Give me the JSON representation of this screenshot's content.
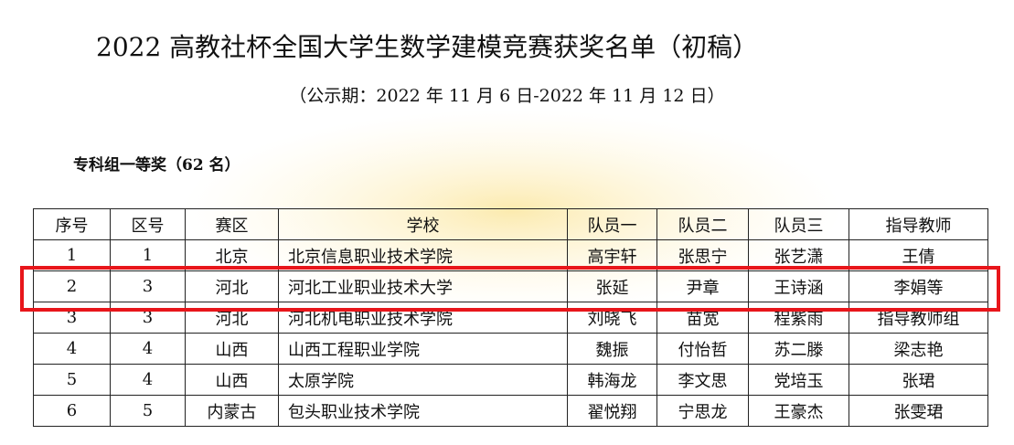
{
  "header": {
    "title": "2022 高教社杯全国大学生数学建模竞赛获奖名单（初稿）",
    "subtitle": "（公示期：2022 年 11 月 6 日-2022 年 11 月 12 日）"
  },
  "section": "专科组一等奖（62 名）",
  "table": {
    "columns": [
      "序号",
      "区号",
      "赛区",
      "学校",
      "队员一",
      "队员二",
      "队员三",
      "指导教师"
    ],
    "rows": [
      [
        "1",
        "1",
        "北京",
        "北京信息职业技术学院",
        "高宇轩",
        "张思宁",
        "张艺潇",
        "王倩"
      ],
      [
        "2",
        "3",
        "河北",
        "河北工业职业技术大学",
        "张延",
        "尹章",
        "王诗涵",
        "李娟等"
      ],
      [
        "3",
        "3",
        "河北",
        "河北机电职业技术学院",
        "刘晓飞",
        "苗宽",
        "程紫雨",
        "指导教师组"
      ],
      [
        "4",
        "4",
        "山西",
        "山西工程职业学院",
        "魏振",
        "付怡哲",
        "苏二滕",
        "梁志艳"
      ],
      [
        "5",
        "4",
        "山西",
        "太原学院",
        "韩海龙",
        "李文思",
        "党培玉",
        "张珺"
      ],
      [
        "6",
        "5",
        "内蒙古",
        "包头职业技术学院",
        "翟悦翔",
        "宁思龙",
        "王豪杰",
        "张雯珺"
      ]
    ]
  }
}
